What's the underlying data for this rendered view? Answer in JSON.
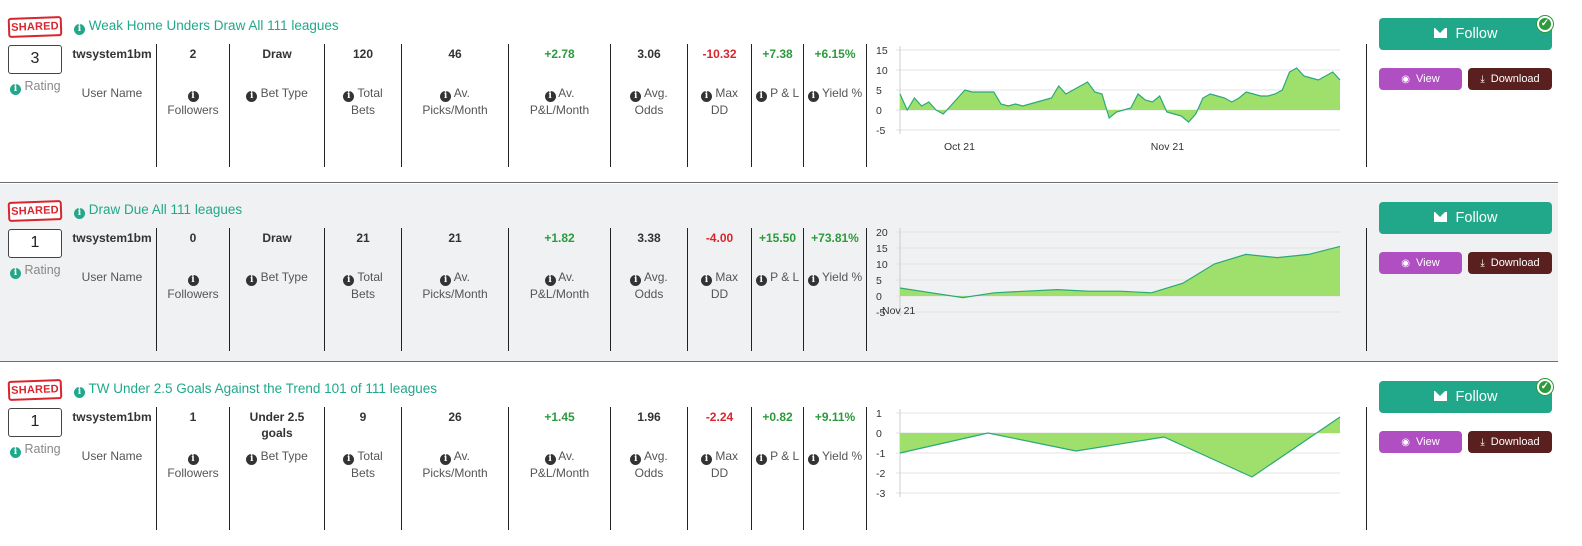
{
  "column_labels": {
    "user_name": "User Name",
    "followers": "Followers",
    "bet_type": "Bet Type",
    "total_bets": [
      "Total",
      "Bets"
    ],
    "av_picks": [
      "Av.",
      "Picks/Month"
    ],
    "av_pl": [
      "Av.",
      "P&L/Month"
    ],
    "avg_odds": [
      "Avg.",
      "Odds"
    ],
    "max_dd": [
      "Max",
      "DD"
    ],
    "pl": "P & L",
    "yield": "Yield %",
    "rating": "Rating"
  },
  "buttons": {
    "follow": "Follow",
    "view": "View",
    "download": "Download"
  },
  "shared_badge": "SHARED",
  "colors": {
    "accent": "#21a88a",
    "positive": "#2d9a3e",
    "negative": "#d8262f",
    "view": "#b04fc2",
    "download": "#5a1f1f"
  },
  "systems": [
    {
      "title": "Weak Home Unders Draw All 111 leagues",
      "rating": "3",
      "user_name": "twsystem1bm",
      "followers": "2",
      "bet_type": "Draw",
      "total_bets": "120",
      "av_picks": "46",
      "av_pl": "+2.78",
      "avg_odds": "3.06",
      "max_dd": "-10.32",
      "pl": "+7.38",
      "yield": "+6.15%",
      "followed": true
    },
    {
      "title": "Draw Due All 111 leagues",
      "rating": "1",
      "user_name": "twsystem1bm",
      "followers": "0",
      "bet_type": "Draw",
      "total_bets": "21",
      "av_picks": "21",
      "av_pl": "+1.82",
      "avg_odds": "3.38",
      "max_dd": "-4.00",
      "pl": "+15.50",
      "yield": "+73.81%",
      "followed": false
    },
    {
      "title": "TW Under 2.5 Goals Against the Trend 101 of 111 leagues",
      "rating": "1",
      "user_name": "twsystem1bm",
      "followers": "1",
      "bet_type": "Under 2.5 goals",
      "total_bets": "9",
      "av_picks": "26",
      "av_pl": "+1.45",
      "avg_odds": "1.96",
      "max_dd": "-2.24",
      "pl": "+0.82",
      "yield": "+9.11%",
      "followed": true
    }
  ],
  "chart_data": [
    {
      "type": "area",
      "x_tick_labels": [
        "Oct 21",
        "Nov 21"
      ],
      "yticks": [
        15,
        10,
        5,
        0,
        -5
      ],
      "ylim": [
        -5,
        15
      ],
      "grid": true,
      "fill": "#9ee06b",
      "line": "#2aa87a",
      "values": [
        4,
        0,
        3,
        1,
        2,
        0,
        -1,
        1,
        3,
        5,
        4.5,
        4.5,
        4.5,
        4.5,
        1.5,
        1,
        1.5,
        1,
        1.5,
        2,
        2.5,
        3,
        6,
        4,
        5,
        6,
        7,
        4.5,
        4,
        -2,
        -0.5,
        0,
        0.5,
        4,
        2.5,
        2,
        3.5,
        -0.5,
        -1,
        -1.5,
        -3,
        -1,
        3,
        4,
        3.5,
        3,
        2,
        3,
        4.5,
        4,
        3.5,
        3.5,
        4,
        5,
        9.5,
        10.5,
        8.5,
        8,
        7.5,
        8.5,
        9.5,
        7.5
      ]
    },
    {
      "type": "area",
      "x_tick_labels": [
        "Nov 21"
      ],
      "yticks": [
        20,
        15,
        10,
        5,
        0,
        -5
      ],
      "ylim": [
        -5,
        20
      ],
      "grid": true,
      "fill": "#9ee06b",
      "line": "#2aa87a",
      "values": [
        2.5,
        1,
        -0.5,
        1,
        1.5,
        2,
        1.5,
        1.5,
        1,
        4,
        10,
        13,
        12,
        13,
        15.5
      ]
    },
    {
      "type": "area",
      "x_tick_labels": [],
      "yticks": [
        1,
        0,
        -1,
        -2,
        -3
      ],
      "ylim": [
        -3,
        1
      ],
      "grid": true,
      "fill": "#9ee06b",
      "line": "#2aa87a",
      "values": [
        -1,
        0,
        -0.9,
        -0.2,
        -2.2,
        0.8
      ]
    }
  ]
}
